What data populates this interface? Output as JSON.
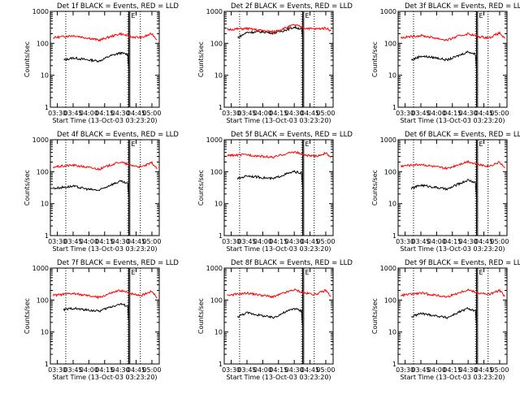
{
  "page": {
    "background": "#ffffff",
    "axis_color": "#000000",
    "events_color": "#000000",
    "lld_color": "#ff0000"
  },
  "chart_data": [
    {
      "type": "line",
      "title": "Det 1f BLACK = Events, RED = LLD",
      "xlabel": "Start Time (13-Oct-03 03:23:20)",
      "ylabel": "Counts/sec",
      "y_scale": "log",
      "ylim": [
        1,
        1000
      ],
      "xlim": [
        "03:23:20",
        "05:07:00"
      ],
      "x_ticks": [
        "03:30",
        "03:45",
        "04:00",
        "04:15",
        "04:30",
        "04:45",
        "05:00"
      ],
      "y_ticks": [
        "1",
        "10",
        "100",
        "1000"
      ],
      "markers": {
        "E": "04:39:30",
        "dotted": [
          "03:38:00",
          "04:37:00",
          "04:49:00"
        ],
        "solid": [
          "04:38:00",
          "04:39:00"
        ]
      },
      "series": [
        {
          "name": "Events",
          "color": "#000000",
          "x": [
            "03:36:00",
            "03:45:00",
            "04:00:00",
            "04:10:00",
            "04:20:00",
            "04:30:00",
            "04:37:00",
            "04:38:00"
          ],
          "y": [
            30,
            35,
            30,
            28,
            40,
            50,
            45,
            15
          ]
        },
        {
          "name": "LLD",
          "color": "#ff0000",
          "x": [
            "03:26:00",
            "03:45:00",
            "04:00:00",
            "04:10:00",
            "04:20:00",
            "04:30:00",
            "04:40:00",
            "04:50:00",
            "05:00:00",
            "05:05:00"
          ],
          "y": [
            150,
            175,
            145,
            125,
            160,
            200,
            160,
            150,
            200,
            130
          ]
        }
      ]
    },
    {
      "type": "line",
      "title": "Det 2f BLACK = Events, RED = LLD",
      "xlabel": "Start Time (13-Oct-03 03:23:20)",
      "ylabel": "Counts/sec",
      "y_scale": "log",
      "ylim": [
        1,
        1000
      ],
      "xlim": [
        "03:23:20",
        "05:07:00"
      ],
      "x_ticks": [
        "03:30",
        "03:45",
        "04:00",
        "04:15",
        "04:30",
        "04:45",
        "05:00"
      ],
      "y_ticks": [
        "1",
        "10",
        "100",
        "1000"
      ],
      "markers": {
        "E": "04:39:30",
        "dotted": [
          "03:38:00",
          "04:37:00",
          "04:49:00"
        ],
        "solid": [
          "04:38:00",
          "04:39:00"
        ]
      },
      "series": [
        {
          "name": "Events",
          "color": "#000000",
          "x": [
            "03:36:00",
            "03:45:00",
            "04:00:00",
            "04:10:00",
            "04:20:00",
            "04:30:00",
            "04:37:00",
            "04:38:00"
          ],
          "y": [
            150,
            220,
            230,
            210,
            250,
            320,
            280,
            150
          ]
        },
        {
          "name": "LLD",
          "color": "#ff0000",
          "x": [
            "03:26:00",
            "03:45:00",
            "04:00:00",
            "04:10:00",
            "04:20:00",
            "04:30:00",
            "04:40:00",
            "04:50:00",
            "05:00:00",
            "05:05:00"
          ],
          "y": [
            270,
            290,
            250,
            230,
            290,
            380,
            300,
            280,
            300,
            250
          ]
        }
      ]
    },
    {
      "type": "line",
      "title": "Det 3f BLACK = Events, RED = LLD",
      "xlabel": "Start Time (13-Oct-03 03:23:20)",
      "ylabel": "Counts/sec",
      "y_scale": "log",
      "ylim": [
        1,
        1000
      ],
      "xlim": [
        "03:23:20",
        "05:07:00"
      ],
      "x_ticks": [
        "03:30",
        "03:45",
        "04:00",
        "04:15",
        "04:30",
        "04:45",
        "05:00"
      ],
      "y_ticks": [
        "1",
        "10",
        "100",
        "1000"
      ],
      "markers": {
        "E": "04:39:30",
        "dotted": [
          "03:38:00",
          "04:37:00",
          "04:49:00"
        ],
        "solid": [
          "04:38:00",
          "04:39:00"
        ]
      },
      "series": [
        {
          "name": "Events",
          "color": "#000000",
          "x": [
            "03:36:00",
            "03:45:00",
            "04:00:00",
            "04:10:00",
            "04:20:00",
            "04:30:00",
            "04:37:00",
            "04:38:00"
          ],
          "y": [
            30,
            40,
            35,
            30,
            40,
            55,
            45,
            15
          ]
        },
        {
          "name": "LLD",
          "color": "#ff0000",
          "x": [
            "03:26:00",
            "03:45:00",
            "04:00:00",
            "04:10:00",
            "04:20:00",
            "04:30:00",
            "04:40:00",
            "04:50:00",
            "05:00:00",
            "05:05:00"
          ],
          "y": [
            150,
            175,
            145,
            125,
            165,
            200,
            160,
            150,
            210,
            140
          ]
        }
      ]
    },
    {
      "type": "line",
      "title": "Det 4f BLACK = Events, RED = LLD",
      "xlabel": "Start Time (13-Oct-03 03:23:20)",
      "ylabel": "Counts/sec",
      "y_scale": "log",
      "ylim": [
        1,
        1000
      ],
      "xlim": [
        "03:23:20",
        "05:07:00"
      ],
      "x_ticks": [
        "03:30",
        "03:45",
        "04:00",
        "04:15",
        "04:30",
        "04:45",
        "05:00"
      ],
      "y_ticks": [
        "1",
        "10",
        "100",
        "1000"
      ],
      "markers": {
        "E": "04:39:30",
        "dotted": [
          "03:38:00",
          "04:37:00",
          "04:49:00"
        ],
        "solid": [
          "04:38:00",
          "04:39:00"
        ]
      },
      "series": [
        {
          "name": "Events",
          "color": "#000000",
          "x": [
            "03:26:00",
            "03:45:00",
            "04:00:00",
            "04:10:00",
            "04:20:00",
            "04:30:00",
            "04:37:00",
            "04:38:00"
          ],
          "y": [
            30,
            35,
            28,
            26,
            38,
            50,
            42,
            15
          ]
        },
        {
          "name": "LLD",
          "color": "#ff0000",
          "x": [
            "03:26:00",
            "03:45:00",
            "04:00:00",
            "04:10:00",
            "04:20:00",
            "04:30:00",
            "04:40:00",
            "04:50:00",
            "05:00:00",
            "05:05:00"
          ],
          "y": [
            140,
            160,
            135,
            120,
            160,
            200,
            160,
            140,
            190,
            120
          ]
        }
      ]
    },
    {
      "type": "line",
      "title": "Det 5f BLACK = Events, RED = LLD",
      "xlabel": "Start Time (13-Oct-03 03:23:20)",
      "ylabel": "Counts/sec",
      "y_scale": "log",
      "ylim": [
        1,
        1000
      ],
      "xlim": [
        "03:23:20",
        "05:07:00"
      ],
      "x_ticks": [
        "03:30",
        "03:45",
        "04:00",
        "04:15",
        "04:30",
        "04:45",
        "05:00"
      ],
      "y_ticks": [
        "1",
        "10",
        "100",
        "1000"
      ],
      "markers": {
        "E": "04:39:30",
        "dotted": [
          "03:38:00",
          "04:37:00",
          "04:49:00"
        ],
        "solid": [
          "04:38:00",
          "04:39:00"
        ]
      },
      "series": [
        {
          "name": "Events",
          "color": "#000000",
          "x": [
            "03:36:00",
            "03:45:00",
            "04:00:00",
            "04:10:00",
            "04:20:00",
            "04:30:00",
            "04:37:00",
            "04:38:00"
          ],
          "y": [
            60,
            75,
            65,
            60,
            80,
            100,
            90,
            30
          ]
        },
        {
          "name": "LLD",
          "color": "#ff0000",
          "x": [
            "03:26:00",
            "03:45:00",
            "04:00:00",
            "04:10:00",
            "04:20:00",
            "04:30:00",
            "04:40:00",
            "04:50:00",
            "05:00:00",
            "05:05:00"
          ],
          "y": [
            320,
            340,
            300,
            280,
            350,
            420,
            330,
            300,
            380,
            280
          ]
        }
      ]
    },
    {
      "type": "line",
      "title": "Det 6f BLACK = Events, RED = LLD",
      "xlabel": "Start Time (13-Oct-03 03:23:20)",
      "ylabel": "Counts/sec",
      "y_scale": "log",
      "ylim": [
        1,
        1000
      ],
      "xlim": [
        "03:23:20",
        "05:07:00"
      ],
      "x_ticks": [
        "03:30",
        "03:45",
        "04:00",
        "04:15",
        "04:30",
        "04:45",
        "05:00"
      ],
      "y_ticks": [
        "1",
        "10",
        "100",
        "1000"
      ],
      "markers": {
        "E": "04:39:30",
        "dotted": [
          "03:38:00",
          "04:37:00",
          "04:49:00"
        ],
        "solid": [
          "04:38:00",
          "04:39:00"
        ]
      },
      "series": [
        {
          "name": "Events",
          "color": "#000000",
          "x": [
            "03:36:00",
            "03:45:00",
            "04:00:00",
            "04:10:00",
            "04:20:00",
            "04:30:00",
            "04:37:00",
            "04:38:00"
          ],
          "y": [
            30,
            38,
            32,
            28,
            40,
            55,
            45,
            15
          ]
        },
        {
          "name": "LLD",
          "color": "#ff0000",
          "x": [
            "03:26:00",
            "03:45:00",
            "04:00:00",
            "04:10:00",
            "04:20:00",
            "04:30:00",
            "04:40:00",
            "04:50:00",
            "05:00:00",
            "05:05:00"
          ],
          "y": [
            150,
            170,
            140,
            125,
            165,
            210,
            165,
            150,
            200,
            130
          ]
        }
      ]
    },
    {
      "type": "line",
      "title": "Det 7f BLACK = Events, RED = LLD",
      "xlabel": "Start Time (13-Oct-03 03:23:20)",
      "ylabel": "Counts/sec",
      "y_scale": "log",
      "ylim": [
        1,
        1000
      ],
      "xlim": [
        "03:23:20",
        "05:07:00"
      ],
      "x_ticks": [
        "03:30",
        "03:45",
        "04:00",
        "04:15",
        "04:30",
        "04:45",
        "05:00"
      ],
      "y_ticks": [
        "1",
        "10",
        "100",
        "1000"
      ],
      "markers": {
        "E": "04:39:30",
        "dotted": [
          "03:38:00",
          "04:37:00",
          "04:49:00"
        ],
        "solid": [
          "04:38:00",
          "04:39:00"
        ]
      },
      "series": [
        {
          "name": "Events",
          "color": "#000000",
          "x": [
            "03:36:00",
            "03:45:00",
            "04:00:00",
            "04:10:00",
            "04:20:00",
            "04:30:00",
            "04:37:00",
            "04:38:00"
          ],
          "y": [
            50,
            55,
            48,
            45,
            60,
            75,
            65,
            20
          ]
        },
        {
          "name": "LLD",
          "color": "#ff0000",
          "x": [
            "03:26:00",
            "03:45:00",
            "04:00:00",
            "04:10:00",
            "04:20:00",
            "04:30:00",
            "04:40:00",
            "04:50:00",
            "05:00:00",
            "05:05:00"
          ],
          "y": [
            140,
            160,
            135,
            120,
            160,
            200,
            160,
            140,
            190,
            120
          ]
        }
      ]
    },
    {
      "type": "line",
      "title": "Det 8f BLACK = Events, RED = LLD",
      "xlabel": "Start Time (13-Oct-03 03:23:20)",
      "ylabel": "Counts/sec",
      "y_scale": "log",
      "ylim": [
        1,
        1000
      ],
      "xlim": [
        "03:23:20",
        "05:07:00"
      ],
      "x_ticks": [
        "03:30",
        "03:45",
        "04:00",
        "04:15",
        "04:30",
        "04:45",
        "05:00"
      ],
      "y_ticks": [
        "1",
        "10",
        "100",
        "1000"
      ],
      "markers": {
        "E": "04:39:30",
        "dotted": [
          "03:38:00",
          "04:37:00",
          "04:49:00"
        ],
        "solid": [
          "04:38:00",
          "04:39:00"
        ]
      },
      "series": [
        {
          "name": "Events",
          "color": "#000000",
          "x": [
            "03:36:00",
            "03:45:00",
            "04:00:00",
            "04:10:00",
            "04:20:00",
            "04:30:00",
            "04:37:00",
            "04:38:00"
          ],
          "y": [
            30,
            40,
            32,
            28,
            40,
            55,
            45,
            15
          ]
        },
        {
          "name": "LLD",
          "color": "#ff0000",
          "x": [
            "03:26:00",
            "03:45:00",
            "04:00:00",
            "04:10:00",
            "04:20:00",
            "04:30:00",
            "04:40:00",
            "04:50:00",
            "05:00:00",
            "05:05:00"
          ],
          "y": [
            140,
            165,
            140,
            125,
            165,
            210,
            165,
            150,
            200,
            130
          ]
        }
      ]
    },
    {
      "type": "line",
      "title": "Det 9f BLACK = Events, RED = LLD",
      "xlabel": "Start Time (13-Oct-03 03:23:20)",
      "ylabel": "Counts/sec",
      "y_scale": "log",
      "ylim": [
        1,
        1000
      ],
      "xlim": [
        "03:23:20",
        "05:07:00"
      ],
      "x_ticks": [
        "03:30",
        "03:45",
        "04:00",
        "04:15",
        "04:30",
        "04:45",
        "05:00"
      ],
      "y_ticks": [
        "1",
        "10",
        "100",
        "1000"
      ],
      "markers": {
        "E": "04:39:30",
        "dotted": [
          "03:38:00",
          "04:37:00",
          "04:49:00"
        ],
        "solid": [
          "04:38:00",
          "04:39:00"
        ]
      },
      "series": [
        {
          "name": "Events",
          "color": "#000000",
          "x": [
            "03:36:00",
            "03:45:00",
            "04:00:00",
            "04:10:00",
            "04:20:00",
            "04:30:00",
            "04:37:00",
            "04:38:00"
          ],
          "y": [
            30,
            38,
            32,
            28,
            40,
            55,
            45,
            15
          ]
        },
        {
          "name": "LLD",
          "color": "#ff0000",
          "x": [
            "03:26:00",
            "03:45:00",
            "04:00:00",
            "04:10:00",
            "04:20:00",
            "04:30:00",
            "04:40:00",
            "04:50:00",
            "05:00:00",
            "05:05:00"
          ],
          "y": [
            140,
            165,
            140,
            125,
            165,
            210,
            165,
            150,
            200,
            130
          ]
        }
      ]
    }
  ]
}
